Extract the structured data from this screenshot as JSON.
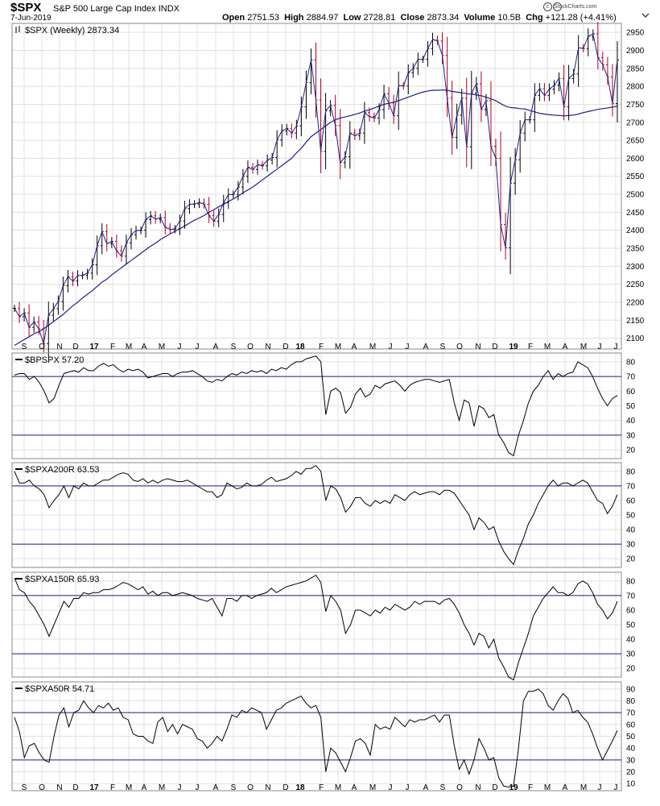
{
  "header": {
    "symbol": "$SPX",
    "name": "S&P 500 Large Cap Index",
    "exchange": "INDX",
    "date": "7-Jun-2019",
    "open_label": "Open",
    "open": "2751.53",
    "high_label": "High",
    "high": "2884.97",
    "low_label": "Low",
    "low": "2728.81",
    "close_label": "Close",
    "close": "2873.34",
    "volume_label": "Volume",
    "volume": "10.5B",
    "chg_label": "Chg",
    "chg": "+121.28 (+4.41%)",
    "logo": "StockCharts.com",
    "dropdown_icon": "chevron-down-icon"
  },
  "colors": {
    "price": "#000000",
    "ma": "#1f1f8a",
    "ref_lines": "#1f1f8a",
    "down_bar": "#b00020",
    "grid": "#e0e0e0"
  },
  "x_axis": {
    "labels": [
      "S",
      "O",
      "N",
      "D",
      "17",
      "F",
      "M",
      "A",
      "M",
      "J",
      "J",
      "A",
      "S",
      "O",
      "N",
      "D",
      "18",
      "F",
      "M",
      "A",
      "M",
      "J",
      "J",
      "A",
      "S",
      "O",
      "N",
      "D",
      "19",
      "F",
      "M",
      "A",
      "M",
      "J",
      "J"
    ],
    "bold": [
      "17",
      "18",
      "19"
    ]
  },
  "chart_data": [
    {
      "type": "ohlc",
      "title": "$SPX (Weekly) 2873.34",
      "period": "weekly",
      "yticks": [
        2100,
        2150,
        2200,
        2250,
        2300,
        2350,
        2400,
        2450,
        2500,
        2550,
        2600,
        2650,
        2700,
        2750,
        2800,
        2850,
        2900,
        2950
      ],
      "ylim": [
        2070,
        2975
      ],
      "overlay": "moving average",
      "series": [
        {
          "name": "$SPX",
          "values": [
            2183,
            2160,
            2170,
            2130,
            2145,
            2126,
            2085,
            2164,
            2182,
            2202,
            2246,
            2271,
            2259,
            2274,
            2275,
            2281,
            2304,
            2357,
            2396,
            2363,
            2369,
            2343,
            2328,
            2365,
            2388,
            2399,
            2400,
            2430,
            2440,
            2431,
            2435,
            2408,
            2402,
            2404,
            2426,
            2460,
            2472,
            2473,
            2477,
            2472,
            2441,
            2425,
            2444,
            2477,
            2499,
            2500,
            2520,
            2550,
            2575,
            2569,
            2582,
            2579,
            2595,
            2602,
            2651,
            2676,
            2683,
            2670,
            2690,
            2743,
            2810,
            2873,
            2762,
            2619,
            2732,
            2747,
            2691,
            2588,
            2604,
            2670,
            2663,
            2670,
            2727,
            2716,
            2712,
            2735,
            2779,
            2754,
            2718,
            2802,
            2801,
            2838,
            2850,
            2875,
            2875,
            2905,
            2930,
            2926,
            2886,
            2767,
            2658,
            2720,
            2767,
            2632,
            2781,
            2807,
            2736,
            2760,
            2633,
            2600,
            2416,
            2351,
            2531,
            2596,
            2670,
            2707,
            2707,
            2775,
            2793,
            2775,
            2792,
            2803,
            2822,
            2743,
            2822,
            2834,
            2907,
            2905,
            2939,
            2946,
            2880,
            2860,
            2826,
            2752,
            2873
          ]
        },
        {
          "name": "MA",
          "values": [
            2080,
            2088,
            2096,
            2104,
            2112,
            2118,
            2126,
            2136,
            2146,
            2156,
            2166,
            2178,
            2190,
            2200,
            2212,
            2222,
            2232,
            2244,
            2256,
            2264,
            2276,
            2286,
            2296,
            2306,
            2316,
            2326,
            2336,
            2346,
            2356,
            2364,
            2374,
            2382,
            2390,
            2397,
            2404,
            2412,
            2420,
            2428,
            2434,
            2441,
            2450,
            2457,
            2465,
            2472,
            2480,
            2487,
            2495,
            2504,
            2512,
            2520,
            2530,
            2540,
            2550,
            2560,
            2570,
            2580,
            2590,
            2600,
            2615,
            2628,
            2645,
            2660,
            2670,
            2680,
            2690,
            2700,
            2707,
            2712,
            2715,
            2718,
            2722,
            2726,
            2731,
            2735,
            2740,
            2745,
            2750,
            2753,
            2756,
            2760,
            2765,
            2770,
            2775,
            2780,
            2784,
            2787,
            2789,
            2789,
            2790,
            2789,
            2786,
            2784,
            2782,
            2780,
            2778,
            2776,
            2774,
            2770,
            2765,
            2760,
            2752,
            2745,
            2741,
            2740,
            2738,
            2737,
            2733,
            2729,
            2725,
            2723,
            2721,
            2720,
            2719,
            2718,
            2719,
            2720,
            2723,
            2727,
            2730,
            2733,
            2736,
            2738,
            2740,
            2742,
            2745
          ]
        }
      ]
    },
    {
      "type": "line",
      "title": "$BPSPX 57.20",
      "yticks": [
        20,
        30,
        40,
        50,
        60,
        70,
        80
      ],
      "ylim": [
        14,
        86
      ],
      "ref_lines": [
        70,
        30
      ],
      "series": [
        {
          "name": "$BPSPX",
          "values": [
            71,
            72,
            72,
            68,
            70,
            66,
            60,
            52,
            55,
            64,
            72,
            73,
            74,
            73,
            76,
            74,
            74,
            77,
            79,
            77,
            78,
            75,
            73,
            75,
            74,
            75,
            73,
            69,
            70,
            71,
            72,
            72,
            70,
            72,
            73,
            73,
            74,
            72,
            70,
            67,
            66,
            68,
            67,
            70,
            72,
            71,
            73,
            72,
            74,
            73,
            74,
            72,
            75,
            74,
            76,
            75,
            78,
            80,
            80,
            82,
            83,
            84,
            80,
            44,
            60,
            62,
            59,
            45,
            49,
            58,
            62,
            56,
            58,
            64,
            62,
            65,
            66,
            67,
            64,
            60,
            64,
            66,
            67,
            68,
            68,
            67,
            66,
            67,
            68,
            52,
            40,
            54,
            52,
            36,
            50,
            48,
            42,
            44,
            30,
            25,
            18,
            16,
            30,
            40,
            52,
            60,
            64,
            70,
            74,
            68,
            72,
            70,
            72,
            73,
            80,
            78,
            76,
            70,
            62,
            55,
            50,
            55,
            57
          ]
        }
      ]
    },
    {
      "type": "line",
      "title": "$SPXA200R 63.53",
      "yticks": [
        20,
        30,
        40,
        50,
        60,
        70,
        80
      ],
      "ylim": [
        14,
        86
      ],
      "ref_lines": [
        70,
        30
      ],
      "series": [
        {
          "name": "$SPXA200R",
          "values": [
            80,
            72,
            72,
            74,
            70,
            68,
            64,
            55,
            60,
            64,
            70,
            62,
            70,
            68,
            72,
            70,
            70,
            72,
            74,
            74,
            76,
            78,
            79,
            78,
            74,
            73,
            75,
            72,
            74,
            72,
            74,
            75,
            74,
            73,
            73,
            74,
            72,
            70,
            68,
            66,
            66,
            62,
            64,
            72,
            70,
            68,
            69,
            72,
            70,
            70,
            71,
            74,
            76,
            73,
            74,
            75,
            77,
            80,
            78,
            82,
            82,
            84,
            80,
            60,
            70,
            68,
            62,
            52,
            56,
            62,
            62,
            58,
            56,
            60,
            58,
            60,
            58,
            64,
            62,
            60,
            64,
            66,
            64,
            65,
            66,
            66,
            64,
            67,
            67,
            65,
            60,
            55,
            50,
            40,
            48,
            45,
            40,
            42,
            32,
            25,
            20,
            16,
            26,
            34,
            44,
            50,
            58,
            64,
            70,
            74,
            70,
            72,
            72,
            70,
            72,
            74,
            72,
            66,
            60,
            58,
            51,
            56,
            64
          ]
        }
      ]
    },
    {
      "type": "line",
      "title": "$SPXA150R 65.93",
      "yticks": [
        20,
        30,
        40,
        50,
        60,
        70,
        80
      ],
      "ylim": [
        14,
        86
      ],
      "ref_lines": [
        70,
        30
      ],
      "series": [
        {
          "name": "$SPXA150R",
          "values": [
            82,
            74,
            72,
            66,
            62,
            56,
            50,
            42,
            50,
            58,
            66,
            62,
            68,
            68,
            72,
            71,
            72,
            72,
            74,
            74,
            75,
            77,
            79,
            78,
            76,
            74,
            76,
            71,
            73,
            70,
            72,
            72,
            70,
            71,
            72,
            71,
            70,
            68,
            67,
            66,
            68,
            62,
            56,
            68,
            68,
            66,
            70,
            70,
            68,
            70,
            71,
            72,
            75,
            72,
            74,
            76,
            77,
            78,
            79,
            80,
            82,
            84,
            79,
            59,
            70,
            66,
            60,
            44,
            50,
            60,
            60,
            58,
            56,
            60,
            58,
            62,
            60,
            64,
            62,
            60,
            62,
            66,
            64,
            66,
            66,
            66,
            64,
            67,
            68,
            64,
            58,
            50,
            44,
            36,
            44,
            42,
            34,
            40,
            27,
            21,
            14,
            12,
            24,
            34,
            44,
            56,
            62,
            68,
            72,
            76,
            72,
            72,
            70,
            72,
            78,
            80,
            78,
            72,
            64,
            60,
            54,
            58,
            66
          ]
        }
      ]
    },
    {
      "type": "line",
      "title": "$SPXA50R 54.71",
      "yticks": [
        10,
        20,
        30,
        40,
        50,
        60,
        70,
        80,
        90
      ],
      "ylim": [
        4,
        96
      ],
      "ref_lines": [
        70,
        30
      ],
      "series": [
        {
          "name": "$SPXA50R",
          "values": [
            66,
            54,
            32,
            42,
            44,
            36,
            30,
            28,
            50,
            68,
            74,
            58,
            70,
            72,
            80,
            74,
            70,
            76,
            74,
            78,
            72,
            74,
            66,
            64,
            52,
            50,
            50,
            46,
            44,
            62,
            66,
            54,
            60,
            52,
            60,
            58,
            56,
            48,
            46,
            40,
            44,
            50,
            46,
            56,
            68,
            66,
            72,
            70,
            74,
            72,
            70,
            56,
            64,
            72,
            74,
            78,
            80,
            82,
            84,
            78,
            74,
            76,
            66,
            20,
            40,
            36,
            28,
            20,
            32,
            46,
            48,
            44,
            34,
            60,
            56,
            58,
            56,
            66,
            62,
            58,
            64,
            62,
            64,
            64,
            66,
            68,
            62,
            68,
            68,
            42,
            22,
            30,
            18,
            30,
            48,
            40,
            30,
            32,
            15,
            8,
            7,
            8,
            40,
            80,
            88,
            88,
            90,
            86,
            76,
            72,
            80,
            86,
            82,
            70,
            72,
            66,
            62,
            52,
            40,
            30,
            38,
            46,
            55
          ]
        }
      ]
    }
  ]
}
